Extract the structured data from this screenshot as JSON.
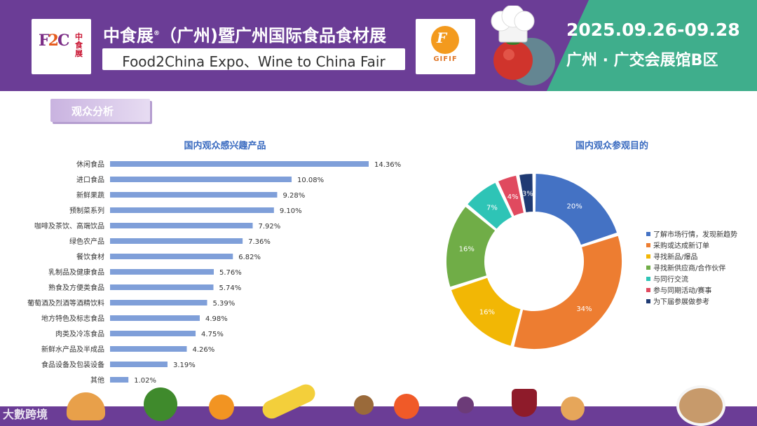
{
  "header": {
    "title_cn": "中食展",
    "title_cn_sup": "®",
    "title_cn_rest": "（广州)暨广州国际食品食材展",
    "title_en": "Food2China Expo、Wine to China Fair",
    "logo_left_cn": "中食展",
    "logo_right_text": "GIFIF",
    "date": "2025.09.26-09.28",
    "venue": "广州 · 广交会展馆B区"
  },
  "section": {
    "label": "观众分析"
  },
  "watermark": {
    "text": "大數跨境"
  },
  "colors": {
    "header_purple": "#6b3d96",
    "header_green": "#3fae8c",
    "bar_blue": "#7f9fd9",
    "title_blue": "#3a6bc0"
  },
  "chart_data": [
    {
      "type": "bar",
      "orientation": "horizontal",
      "title": "国内观众感兴趣产品",
      "categories": [
        "休闲食品",
        "进口食品",
        "新鲜果蔬",
        "预制菜系列",
        "咖啡及茶饮、高端饮品",
        "绿色农产品",
        "餐饮食材",
        "乳制品及健康食品",
        "熟食及方便类食品",
        "葡萄酒及烈酒等酒精饮料",
        "地方特色及标志食品",
        "肉类及冷冻食品",
        "新鲜水产品及半成品",
        "食品设备及包装设备",
        "其他"
      ],
      "values": [
        14.36,
        10.08,
        9.28,
        9.1,
        7.92,
        7.36,
        6.82,
        5.76,
        5.74,
        5.39,
        4.98,
        4.75,
        4.26,
        3.19,
        1.02
      ],
      "value_labels": [
        "14.36%",
        "10.08%",
        "9.28%",
        "9.10%",
        "7.92%",
        "7.36%",
        "6.82%",
        "5.76%",
        "5.74%",
        "5.39%",
        "4.98%",
        "4.75%",
        "4.26%",
        "3.19%",
        "1.02%"
      ],
      "xlim": [
        0,
        16
      ]
    },
    {
      "type": "pie",
      "style": "donut",
      "title": "国内观众参观目的",
      "categories": [
        "了解市场行情，发现新趋势",
        "采购或达成新订单",
        "寻找新品/爆品",
        "寻找新供应商/合作伙伴",
        "与同行交流",
        "参与同期活动/赛事",
        "为下届参展做参考"
      ],
      "values": [
        20,
        34,
        16,
        16,
        7,
        4,
        3
      ],
      "value_labels": [
        "20%",
        "34%",
        "16%",
        "16%",
        "7%",
        "4%",
        "3%"
      ],
      "colors": [
        "#4472c4",
        "#ed7d31",
        "#f2b705",
        "#70ad47",
        "#2ec4b6",
        "#e04a5f",
        "#1f3a73"
      ],
      "legend": "right"
    }
  ]
}
